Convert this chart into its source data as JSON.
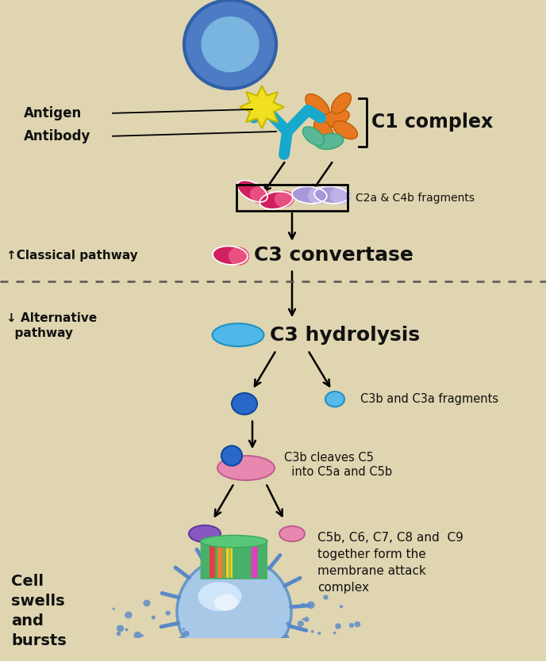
{
  "bg_color": "#dfd5b0",
  "figsize": [
    6.88,
    8.34
  ],
  "dpi": 100,
  "text_color": "#111111",
  "labels": {
    "antigen": "Antigen",
    "antibody": "Antibody",
    "c1_complex": "C1 complex",
    "c2a_c4b": "C2a & C4b fragments",
    "c3_convertase": "C3 convertase",
    "classical": "↑Classical pathway",
    "alternative": "↓ Alternative\n  pathway",
    "c3_hydrolysis": "C3 hydrolysis",
    "c3b_c3a": "C3b and C3a fragments",
    "c3b_cleaves": "C3b cleaves C5\n  into C5a and C5b",
    "mac": "C5b, C6, C7, C8 and  C9\ntogether form the\nmembrane attack\ncomplex",
    "cell_swells": "Cell\nswells\nand\nbursts"
  }
}
